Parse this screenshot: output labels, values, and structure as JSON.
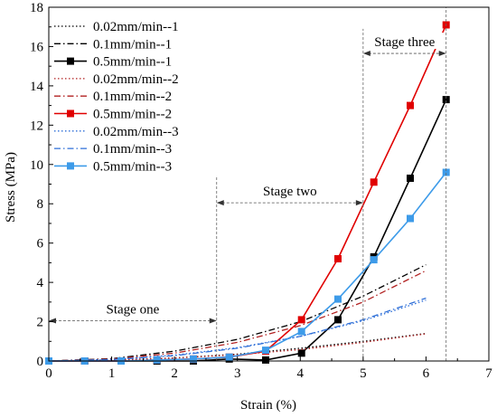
{
  "chart_data": {
    "type": "line",
    "xlabel": "Strain (%)",
    "ylabel": "Stress (MPa)",
    "xlim": [
      0,
      7
    ],
    "ylim": [
      0,
      18
    ],
    "xticks": [
      0,
      1,
      2,
      3,
      4,
      5,
      6,
      7
    ],
    "yticks": [
      0,
      2,
      4,
      6,
      8,
      10,
      12,
      14,
      16,
      18
    ],
    "grid": false,
    "legend_position": "top-left",
    "series": [
      {
        "name": "0.02mm/min--1",
        "color": "#000000",
        "dash": "dot",
        "marker": "none",
        "x": [
          0,
          1,
          2,
          3,
          4,
          5,
          6
        ],
        "y": [
          0,
          0.04,
          0.15,
          0.35,
          0.65,
          1.0,
          1.4
        ]
      },
      {
        "name": "0.1mm/min--1",
        "color": "#000000",
        "dash": "dashdot",
        "marker": "none",
        "x": [
          0,
          1,
          2,
          3,
          4,
          5,
          6
        ],
        "y": [
          0,
          0.12,
          0.5,
          1.1,
          2.0,
          3.3,
          4.9
        ]
      },
      {
        "name": "0.5mm/min--1",
        "color": "#000000",
        "dash": "solid",
        "marker": "square",
        "x": [
          0,
          0.57,
          1.15,
          1.72,
          2.3,
          2.87,
          3.45,
          4.02,
          4.6,
          5.17,
          5.75,
          6.32
        ],
        "y": [
          0,
          0,
          0,
          0,
          0,
          0.1,
          0.05,
          0.4,
          2.1,
          5.3,
          9.3,
          13.3
        ]
      },
      {
        "name": "0.02mm/min--2",
        "color": "#b22222",
        "dash": "dot",
        "marker": "none",
        "x": [
          0,
          1,
          2,
          3,
          4,
          5,
          6
        ],
        "y": [
          0,
          0.05,
          0.15,
          0.32,
          0.58,
          0.95,
          1.38
        ]
      },
      {
        "name": "0.1mm/min--2",
        "color": "#b22222",
        "dash": "dashdot",
        "marker": "none",
        "x": [
          0,
          1,
          2,
          3,
          4,
          5,
          6
        ],
        "y": [
          0,
          0.1,
          0.4,
          0.95,
          1.8,
          3.0,
          4.6
        ]
      },
      {
        "name": "0.5mm/min--2",
        "color": "#e00000",
        "dash": "solid",
        "marker": "square",
        "x": [
          0,
          0.57,
          1.15,
          1.72,
          2.3,
          2.87,
          3.45,
          4.02,
          4.6,
          5.17,
          5.75,
          6.32
        ],
        "y": [
          0,
          0,
          0,
          0.05,
          0.1,
          0.2,
          0.5,
          2.1,
          5.2,
          9.1,
          13.0,
          17.1
        ]
      },
      {
        "name": "0.02mm/min--3",
        "color": "#2e6fd8",
        "dash": "dot",
        "marker": "none",
        "x": [
          0,
          1,
          2,
          3,
          4,
          5,
          6
        ],
        "y": [
          0,
          0.08,
          0.3,
          0.68,
          1.25,
          2.05,
          3.1
        ]
      },
      {
        "name": "0.1mm/min--3",
        "color": "#2e6fd8",
        "dash": "dashdot",
        "marker": "none",
        "x": [
          0,
          1,
          2,
          3,
          4,
          5,
          6
        ],
        "y": [
          0,
          0.07,
          0.27,
          0.65,
          1.25,
          2.1,
          3.2
        ]
      },
      {
        "name": "0.5mm/min--3",
        "color": "#3d9be9",
        "dash": "solid",
        "marker": "square",
        "x": [
          0,
          0.57,
          1.15,
          1.72,
          2.3,
          2.87,
          3.45,
          4.02,
          4.6,
          5.17,
          5.75,
          6.32
        ],
        "y": [
          0,
          0,
          0,
          0.05,
          0.1,
          0.2,
          0.55,
          1.5,
          3.15,
          5.15,
          7.25,
          9.6
        ]
      }
    ],
    "annotations": {
      "vlines": [
        {
          "x": 2.67,
          "y_top": 9.4
        },
        {
          "x": 5.0,
          "y_top": 16.9
        },
        {
          "x": 6.32,
          "y_top": 18.0
        }
      ],
      "stages": [
        {
          "label": "Stage one",
          "x_start": 0,
          "x_end": 2.67,
          "y": 2.05
        },
        {
          "label": "Stage two",
          "x_start": 2.67,
          "x_end": 5.0,
          "y": 8.05
        },
        {
          "label": "Stage three",
          "x_start": 5.0,
          "x_end": 6.32,
          "y": 15.65
        }
      ]
    }
  }
}
